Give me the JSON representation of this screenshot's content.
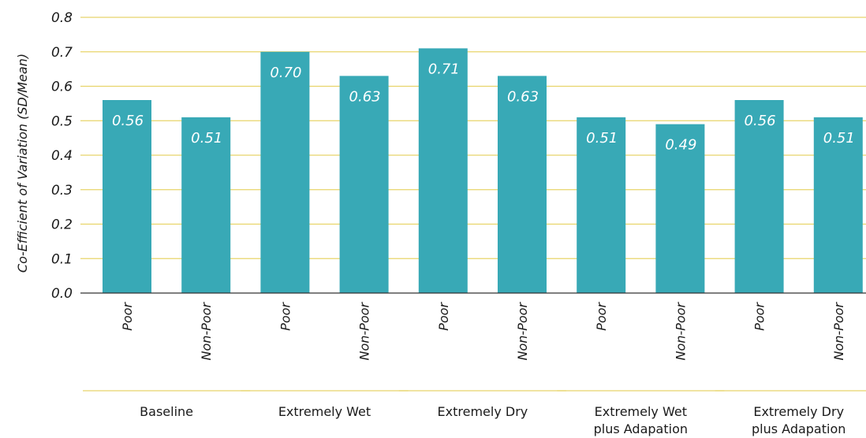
{
  "chart_data": {
    "type": "bar",
    "ylabel": "Co-Efficient of Variation (SD/Mean)",
    "ylim": [
      0,
      0.8
    ],
    "yticks": [
      "0.0",
      "0.1",
      "0.2",
      "0.3",
      "0.4",
      "0.5",
      "0.6",
      "0.7",
      "0.8"
    ],
    "grid": true,
    "groups": [
      {
        "label": [
          "Baseline"
        ],
        "bars": [
          {
            "category": "Poor",
            "value": 0.56,
            "label": "0.56"
          },
          {
            "category": "Non-Poor",
            "value": 0.51,
            "label": "0.51"
          }
        ]
      },
      {
        "label": [
          "Extremely Wet"
        ],
        "bars": [
          {
            "category": "Poor",
            "value": 0.7,
            "label": "0.70"
          },
          {
            "category": "Non-Poor",
            "value": 0.63,
            "label": "0.63"
          }
        ]
      },
      {
        "label": [
          "Extremely Dry"
        ],
        "bars": [
          {
            "category": "Poor",
            "value": 0.71,
            "label": "0.71"
          },
          {
            "category": "Non-Poor",
            "value": 0.63,
            "label": "0.63"
          }
        ]
      },
      {
        "label": [
          "Extremely Wet",
          "plus Adapation"
        ],
        "bars": [
          {
            "category": "Poor",
            "value": 0.51,
            "label": "0.51"
          },
          {
            "category": "Non-Poor",
            "value": 0.49,
            "label": "0.49"
          }
        ]
      },
      {
        "label": [
          "Extremely Dry",
          "plus Adapation"
        ],
        "bars": [
          {
            "category": "Poor",
            "value": 0.56,
            "label": "0.56"
          },
          {
            "category": "Non-Poor",
            "value": 0.51,
            "label": "0.51"
          }
        ]
      }
    ],
    "colors": {
      "bar": "#38a9b6",
      "grid": "#e8d46a",
      "axis": "#333333",
      "value_text": "#ffffff"
    }
  }
}
